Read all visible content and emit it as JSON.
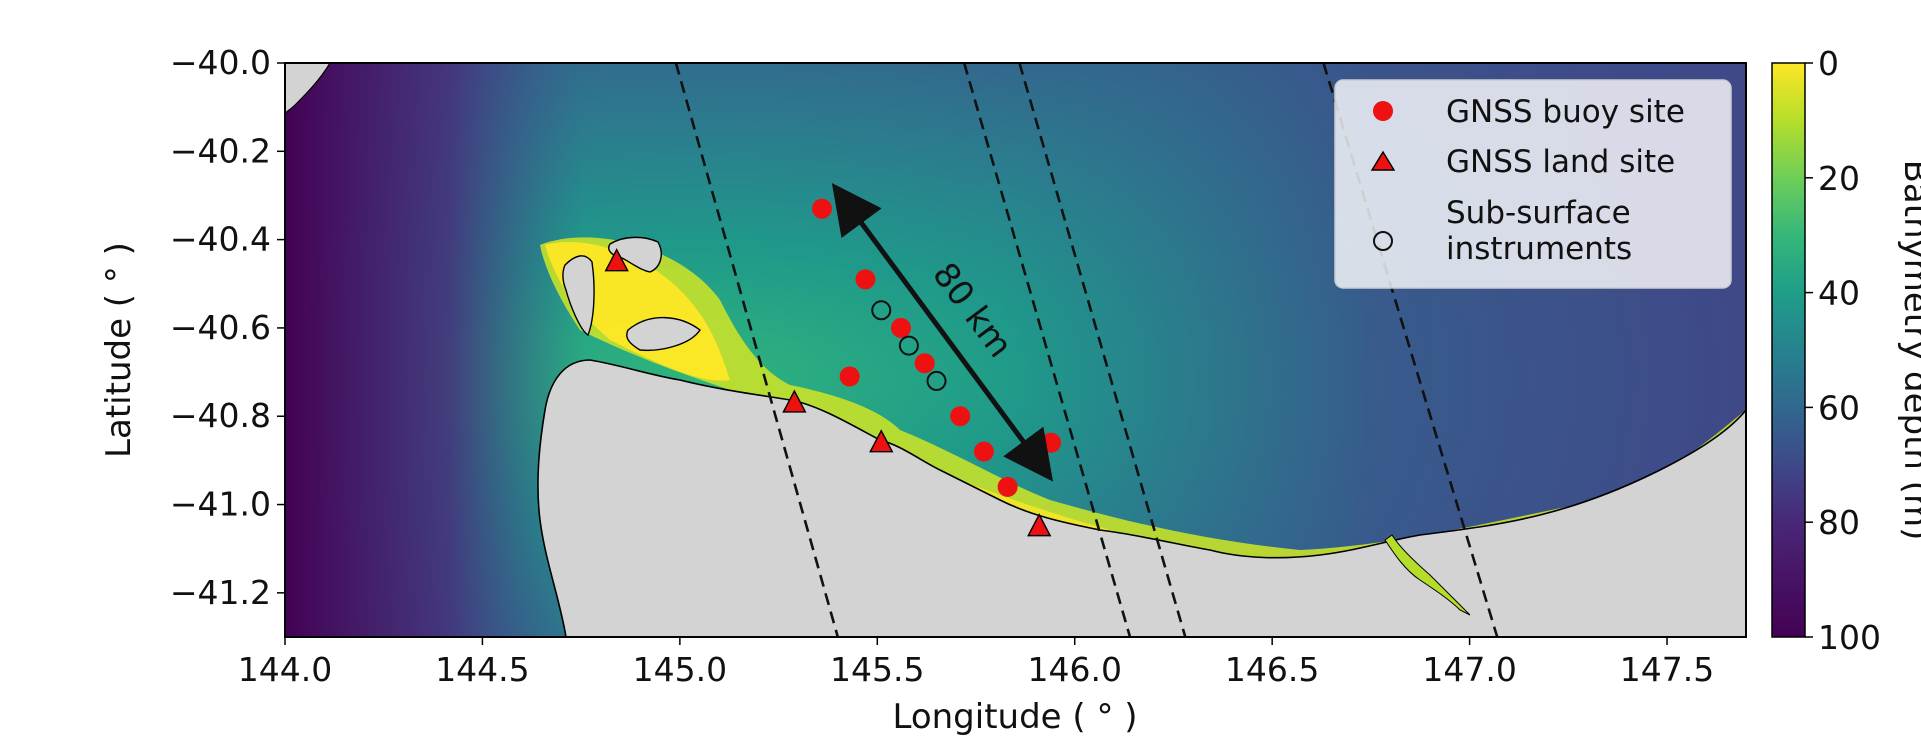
{
  "chart_data": {
    "type": "scatter",
    "title": "",
    "xlabel": "Longitude ( ° )",
    "ylabel": "Latitude ( ° )",
    "xlim": [
      144.0,
      147.7
    ],
    "ylim": [
      -41.3,
      -40.0
    ],
    "xticks": [
      {
        "value": 144.0,
        "label": "144.0"
      },
      {
        "value": 144.5,
        "label": "144.5"
      },
      {
        "value": 145.0,
        "label": "145.0"
      },
      {
        "value": 145.5,
        "label": "145.5"
      },
      {
        "value": 146.0,
        "label": "146.0"
      },
      {
        "value": 146.5,
        "label": "146.5"
      },
      {
        "value": 147.0,
        "label": "147.0"
      },
      {
        "value": 147.5,
        "label": "147.5"
      }
    ],
    "yticks": [
      {
        "value": -40.0,
        "label": "−40.0"
      },
      {
        "value": -40.2,
        "label": "−40.2"
      },
      {
        "value": -40.4,
        "label": "−40.4"
      },
      {
        "value": -40.6,
        "label": "−40.6"
      },
      {
        "value": -40.8,
        "label": "−40.8"
      },
      {
        "value": -41.0,
        "label": "−41.0"
      },
      {
        "value": -41.2,
        "label": "−41.2"
      }
    ],
    "series": [
      {
        "name": "GNSS buoy site",
        "marker": "filled-circle",
        "color": "#ee1111",
        "points": [
          [
            145.36,
            -40.33
          ],
          [
            145.47,
            -40.49
          ],
          [
            145.56,
            -40.6
          ],
          [
            145.43,
            -40.71
          ],
          [
            145.62,
            -40.68
          ],
          [
            145.71,
            -40.8
          ],
          [
            145.77,
            -40.88
          ],
          [
            145.83,
            -40.96
          ],
          [
            145.94,
            -40.86
          ]
        ]
      },
      {
        "name": "GNSS land site",
        "marker": "triangle",
        "color": "#ee1111",
        "points": [
          [
            144.84,
            -40.45
          ],
          [
            145.29,
            -40.77
          ],
          [
            145.51,
            -40.86
          ],
          [
            145.91,
            -41.05
          ]
        ]
      },
      {
        "name": "Sub-surface instruments",
        "marker": "open-circle",
        "color": "#111111",
        "points": [
          [
            145.51,
            -40.56
          ],
          [
            145.58,
            -40.64
          ],
          [
            145.65,
            -40.72
          ]
        ]
      }
    ],
    "dashed_lines": [
      [
        [
          144.99,
          -40.0
        ],
        [
          145.4,
          -41.3
        ]
      ],
      [
        [
          145.72,
          -40.0
        ],
        [
          146.14,
          -41.3
        ]
      ],
      [
        [
          145.86,
          -40.0
        ],
        [
          146.28,
          -41.3
        ]
      ],
      [
        [
          146.63,
          -40.0
        ],
        [
          147.07,
          -41.3
        ]
      ]
    ],
    "annotation": {
      "text": "80 km",
      "arrow_from": [
        145.4,
        -40.29
      ],
      "arrow_to": [
        145.93,
        -40.93
      ]
    },
    "colorbar": {
      "label": "Bathymetry depth (m)",
      "range": [
        0,
        100
      ],
      "ticks": [
        "0",
        "20",
        "40",
        "60",
        "80",
        "100"
      ],
      "colormap": "viridis-reversed"
    },
    "legend_position": "top-right",
    "grid": false
  }
}
